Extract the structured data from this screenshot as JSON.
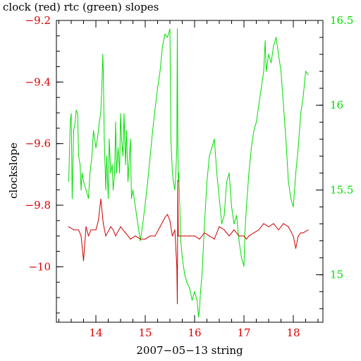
{
  "chart_data": {
    "type": "line",
    "title": "clock (red) rtc (green) slopes",
    "xlabel": "2007−05−13 string",
    "ylabel": "clockslope",
    "xlim": [
      13.2,
      18.6
    ],
    "ylim_left": [
      -10.18,
      -9.2
    ],
    "ylim_right": [
      14.72,
      16.5
    ],
    "x_ticks": [
      {
        "value": 14,
        "label": "14"
      },
      {
        "value": 15,
        "label": "15"
      },
      {
        "value": 16,
        "label": "16"
      },
      {
        "value": 17,
        "label": "17"
      },
      {
        "value": 18,
        "label": "18"
      }
    ],
    "y_left_ticks": [
      {
        "value": -9.2,
        "label": "−9.2"
      },
      {
        "value": -9.4,
        "label": "−9.4"
      },
      {
        "value": -9.6,
        "label": "−9.6"
      },
      {
        "value": -9.8,
        "label": "−9.8"
      },
      {
        "value": -10.0,
        "label": "−10"
      }
    ],
    "y_right_ticks": [
      {
        "value": 16.5,
        "label": "16.5"
      },
      {
        "value": 16.0,
        "label": "16"
      },
      {
        "value": 15.5,
        "label": "15.5"
      },
      {
        "value": 15.0,
        "label": "15"
      }
    ],
    "colors": {
      "left_axis": "#dd0000",
      "right_axis": "#00dd00",
      "red_series": "#cc0000",
      "green_series": "#00dd00",
      "frame": "#000000"
    },
    "series": [
      {
        "axis": "right",
        "color": "green",
        "x": [
          13.45,
          13.48,
          13.5,
          13.52,
          13.55,
          13.58,
          13.6,
          13.63,
          13.65,
          13.68,
          13.7,
          13.72,
          13.75,
          13.8,
          13.85,
          13.88,
          13.92,
          13.95,
          14.0,
          14.03,
          14.07,
          14.1,
          14.12,
          14.14,
          14.15,
          14.17,
          14.2,
          14.22,
          14.25,
          14.27,
          14.3,
          14.33,
          14.35,
          14.38,
          14.4,
          14.42,
          14.45,
          14.48,
          14.5,
          14.52,
          14.55,
          14.57,
          14.6,
          14.62,
          14.65,
          14.68,
          14.7,
          14.72,
          14.75,
          14.8,
          14.85,
          14.9,
          14.95,
          15.0,
          15.05,
          15.1,
          15.15,
          15.2,
          15.25,
          15.3,
          15.35,
          15.4,
          15.45,
          15.5,
          15.52,
          15.55,
          15.57,
          15.6,
          15.62,
          15.64,
          15.65,
          15.66,
          15.67,
          15.68,
          15.7,
          15.72,
          15.75,
          15.8,
          15.85,
          15.9,
          15.95,
          16.0,
          16.05,
          16.08,
          16.1,
          16.12,
          16.15,
          16.2,
          16.25,
          16.3,
          16.35,
          16.4,
          16.42,
          16.45,
          16.5,
          16.55,
          16.6,
          16.65,
          16.7,
          16.75,
          16.8,
          16.85,
          16.9,
          16.95,
          17.0,
          17.02,
          17.05,
          17.1,
          17.15,
          17.2,
          17.25,
          17.3,
          17.35,
          17.4,
          17.43,
          17.45,
          17.5,
          17.55,
          17.6,
          17.65,
          17.7,
          17.75,
          17.8,
          17.85,
          17.9,
          17.95,
          18.0,
          18.05,
          18.1,
          18.15,
          18.2,
          18.25,
          18.3
        ],
        "y": [
          15.55,
          15.9,
          15.95,
          15.45,
          15.85,
          15.9,
          15.97,
          15.95,
          15.7,
          15.65,
          15.5,
          15.6,
          15.55,
          15.5,
          15.45,
          15.6,
          15.7,
          15.85,
          15.75,
          15.8,
          15.9,
          15.96,
          16.1,
          16.3,
          16.2,
          15.8,
          15.5,
          15.7,
          15.45,
          15.8,
          15.6,
          15.65,
          15.5,
          15.6,
          15.9,
          15.6,
          15.75,
          15.6,
          15.95,
          15.8,
          15.7,
          15.95,
          15.65,
          15.85,
          15.55,
          15.7,
          15.8,
          15.45,
          15.5,
          15.4,
          15.3,
          15.2,
          15.3,
          15.42,
          15.55,
          15.7,
          15.85,
          15.98,
          16.1,
          16.2,
          16.35,
          16.42,
          16.4,
          16.45,
          15.8,
          15.6,
          15.55,
          15.5,
          15.6,
          15.75,
          16.45,
          15.8,
          15.55,
          15.6,
          15.4,
          15.2,
          15.1,
          15.0,
          14.95,
          14.92,
          14.85,
          14.9,
          14.85,
          14.75,
          14.8,
          14.9,
          15.0,
          15.3,
          15.55,
          15.7,
          15.75,
          15.8,
          15.72,
          15.6,
          15.45,
          15.3,
          15.35,
          15.55,
          15.6,
          15.4,
          15.3,
          15.35,
          15.2,
          15.1,
          15.05,
          15.25,
          15.4,
          15.6,
          15.75,
          15.85,
          15.9,
          16.0,
          16.1,
          16.2,
          16.38,
          16.2,
          16.3,
          16.25,
          16.35,
          16.4,
          16.3,
          16.2,
          16.0,
          15.8,
          15.55,
          15.45,
          15.4,
          15.6,
          15.75,
          15.95,
          16.05,
          16.2,
          16.18
        ]
      },
      {
        "axis": "left",
        "color": "red",
        "x": [
          13.45,
          13.55,
          13.65,
          13.7,
          13.75,
          13.8,
          13.85,
          13.9,
          14.0,
          14.05,
          14.1,
          14.15,
          14.2,
          14.3,
          14.35,
          14.4,
          14.5,
          14.6,
          14.7,
          14.8,
          14.9,
          15.0,
          15.1,
          15.2,
          15.3,
          15.4,
          15.45,
          15.5,
          15.55,
          15.6,
          15.64,
          15.65,
          15.66,
          15.67,
          15.7,
          15.8,
          15.9,
          16.0,
          16.1,
          16.2,
          16.3,
          16.4,
          16.5,
          16.6,
          16.7,
          16.8,
          16.9,
          17.0,
          17.05,
          17.1,
          17.2,
          17.3,
          17.4,
          17.5,
          17.6,
          17.7,
          17.8,
          17.9,
          18.0,
          18.05,
          18.1,
          18.15,
          18.2,
          18.3
        ],
        "y": [
          -9.87,
          -9.88,
          -9.88,
          -9.9,
          -9.98,
          -9.87,
          -9.9,
          -9.88,
          -9.88,
          -9.85,
          -9.78,
          -9.86,
          -9.9,
          -9.87,
          -9.88,
          -9.9,
          -9.87,
          -9.89,
          -9.91,
          -9.9,
          -9.91,
          -9.91,
          -9.9,
          -9.9,
          -9.87,
          -9.84,
          -9.83,
          -9.85,
          -9.9,
          -9.88,
          -10.0,
          -10.12,
          -9.72,
          -9.9,
          -9.9,
          -9.9,
          -9.9,
          -9.9,
          -9.91,
          -9.89,
          -9.9,
          -9.91,
          -9.87,
          -9.88,
          -9.9,
          -9.88,
          -9.9,
          -9.9,
          -9.91,
          -9.9,
          -9.89,
          -9.88,
          -9.86,
          -9.87,
          -9.86,
          -9.88,
          -9.86,
          -9.87,
          -9.9,
          -9.94,
          -9.9,
          -9.89,
          -9.89,
          -9.88
        ]
      }
    ]
  }
}
